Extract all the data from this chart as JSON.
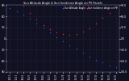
{
  "title": "Sun Altitude Angle & Sun Incidence Angle on PV Panels",
  "bg_color": "#111122",
  "plot_bg": "#111122",
  "grid_color": "#333355",
  "blue_label": "Sun Altitude Angle",
  "red_label": "Sun Incidence Angle on PV",
  "x_times": [
    "04:13",
    "05:13",
    "06:24",
    "07:25",
    "08:25",
    "09:26",
    "10:27",
    "11:27",
    "12:28",
    "13:29",
    "14:30",
    "15:31",
    "16:32",
    "17:33",
    "18:34",
    "19:35",
    "20:36"
  ],
  "blue_x": [
    0,
    1,
    2,
    3,
    4,
    5,
    6,
    7,
    8,
    9,
    10,
    11,
    12,
    13,
    14,
    15,
    16
  ],
  "blue_y": [
    82,
    74,
    64,
    53,
    41,
    29,
    16,
    4,
    -8,
    -18,
    -28,
    -38,
    -48,
    -57,
    -65,
    -73,
    -78
  ],
  "red_x": [
    2,
    3,
    4,
    5,
    6,
    7,
    8,
    9,
    10,
    11,
    12,
    13,
    14,
    15,
    16
  ],
  "red_y": [
    88,
    70,
    52,
    36,
    25,
    17,
    12,
    10,
    12,
    18,
    27,
    40,
    55,
    70,
    85
  ],
  "ylim": [
    -90,
    90
  ],
  "ytick_right": [
    90,
    60,
    30,
    0,
    -30,
    -60,
    -90
  ],
  "ytick_left": [
    90,
    60,
    30,
    0,
    -30,
    -60,
    -90
  ],
  "figsize": [
    1.6,
    1.0
  ],
  "dpi": 100
}
